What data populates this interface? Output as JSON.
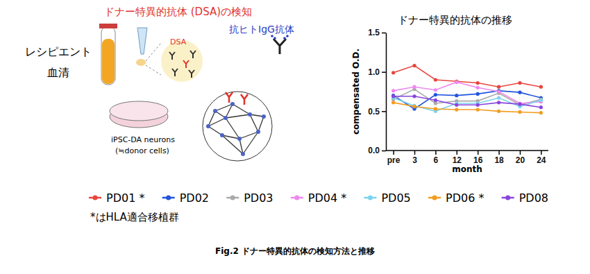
{
  "diagram": {
    "title": "ドナー特異的抗体 (DSA)の検知",
    "antibody_label": "抗ヒトIgG抗体",
    "serum_label": [
      "レシピエント",
      "血清"
    ],
    "dsa_label": "DSA",
    "cells_label": "iPSC-DA neurons",
    "cells_note": "(≒donor cells)"
  },
  "chart_data": {
    "type": "line",
    "title": "ドナー特異的抗体の推移",
    "categories": [
      "pre",
      "3",
      "6",
      "12",
      "16",
      "18",
      "20",
      "24"
    ],
    "x_label": "month",
    "y_label": "compensated O.D.",
    "ylim": [
      0,
      1.5
    ],
    "yticks": [
      {
        "value": 0,
        "label": "0.0"
      },
      {
        "value": 0.5,
        "label": "0.5"
      },
      {
        "value": 1,
        "label": "1.0"
      },
      {
        "value": 1.5,
        "label": "1.5"
      }
    ],
    "grid": false,
    "legend": "bottom",
    "marker": "circle",
    "series": [
      {
        "name": "PD01 *",
        "color": "#e8453c",
        "values": [
          0.99,
          1.08,
          0.9,
          0.88,
          0.86,
          0.81,
          0.86,
          0.81
        ]
      },
      {
        "name": "PD02",
        "color": "#2255dd",
        "values": [
          0.7,
          0.53,
          0.71,
          0.7,
          0.72,
          0.76,
          0.74,
          0.67
        ]
      },
      {
        "name": "PD03",
        "color": "#aaaaaa",
        "values": [
          0.65,
          0.78,
          0.6,
          0.63,
          0.63,
          0.73,
          0.58,
          0.65
        ]
      },
      {
        "name": "PD04 *",
        "color": "#ee88ee",
        "values": [
          0.76,
          0.81,
          0.77,
          0.87,
          0.8,
          0.75,
          0.6,
          0.62
        ]
      },
      {
        "name": "PD05",
        "color": "#7dd3ee",
        "values": [
          0.67,
          0.57,
          0.5,
          0.6,
          0.6,
          0.67,
          0.56,
          0.64
        ]
      },
      {
        "name": "PD06 *",
        "color": "#f39c1f",
        "values": [
          0.61,
          0.56,
          0.53,
          0.52,
          0.52,
          0.5,
          0.49,
          0.48
        ]
      },
      {
        "name": "PD08",
        "color": "#8a44dd",
        "values": [
          0.69,
          0.69,
          0.64,
          0.58,
          0.58,
          0.61,
          0.59,
          0.55
        ]
      }
    ]
  },
  "footnote": "*はHLA適合移植群",
  "caption": "Fig.2 ドナー特異的抗体の検知方法と推移"
}
